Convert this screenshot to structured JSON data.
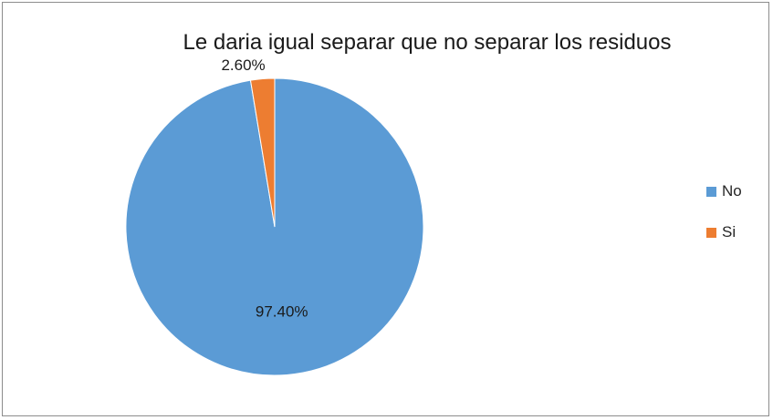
{
  "chart_data": {
    "type": "pie",
    "title": "Le daria igual separar que no separar los residuos",
    "categories": [
      "No",
      "Si"
    ],
    "values": [
      97.4,
      2.6
    ],
    "data_labels": [
      "97.40%",
      "2.60%"
    ],
    "colors": [
      "#5b9bd5",
      "#ed7d31"
    ],
    "legend_position": "right"
  }
}
